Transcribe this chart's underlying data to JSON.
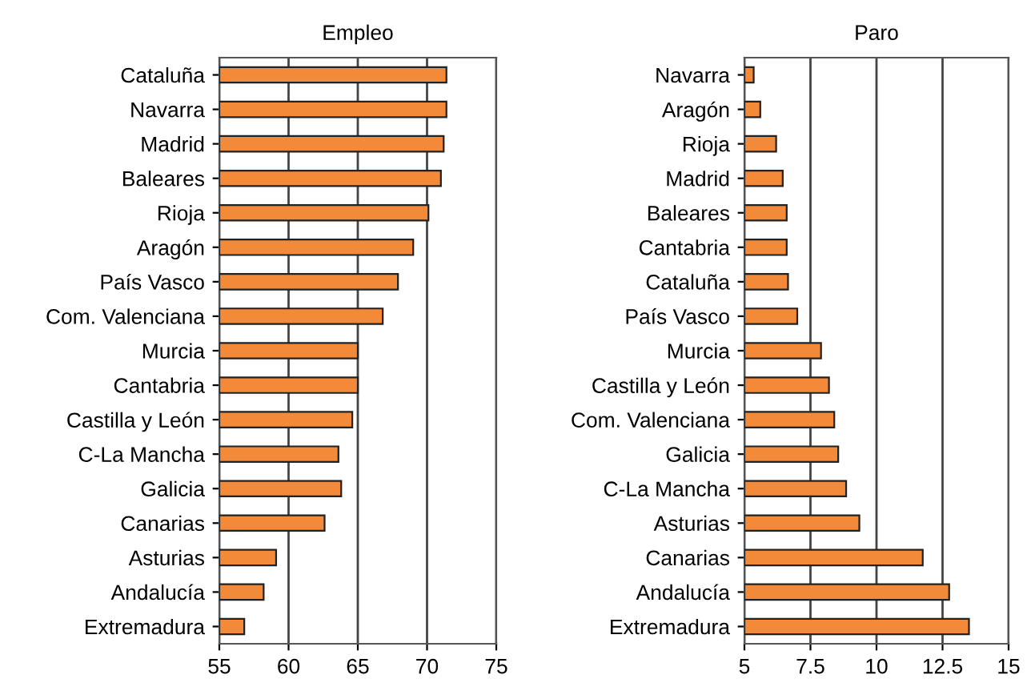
{
  "chart_data": [
    {
      "type": "bar",
      "orientation": "horizontal",
      "title": "Empleo",
      "categories": [
        "Cataluña",
        "Navarra",
        "Madrid",
        "Baleares",
        "Rioja",
        "Aragón",
        "País Vasco",
        "Com. Valenciana",
        "Murcia",
        "Cantabria",
        "Castilla y León",
        "C-La Mancha",
        "Galicia",
        "Canarias",
        "Asturias",
        "Andalucía",
        "Extremadura"
      ],
      "values": [
        71.4,
        71.4,
        71.2,
        71.0,
        70.1,
        69.0,
        67.9,
        66.8,
        65.0,
        65.0,
        64.6,
        63.6,
        63.8,
        62.6,
        59.1,
        58.2,
        56.8
      ],
      "color": "#f28a3a",
      "xlim": [
        55,
        75
      ],
      "xticks": [
        55,
        60,
        65,
        70,
        75
      ],
      "grid": "x"
    },
    {
      "type": "bar",
      "orientation": "horizontal",
      "title": "Paro",
      "categories": [
        "Navarra",
        "Aragón",
        "Rioja",
        "Madrid",
        "Baleares",
        "Cantabria",
        "Cataluña",
        "País Vasco",
        "Murcia",
        "Castilla y León",
        "Com. Valenciana",
        "Galicia",
        "C-La Mancha",
        "Asturias",
        "Canarias",
        "Andalucía",
        "Extremadura"
      ],
      "values": [
        5.35,
        5.6,
        6.2,
        6.45,
        6.6,
        6.6,
        6.65,
        7.0,
        7.9,
        8.2,
        8.4,
        8.55,
        8.85,
        9.35,
        11.75,
        12.75,
        13.5
      ],
      "color": "#f28a3a",
      "xlim": [
        5,
        15
      ],
      "xticks": [
        5,
        7.5,
        10,
        12.5,
        15
      ],
      "grid": "x"
    }
  ]
}
